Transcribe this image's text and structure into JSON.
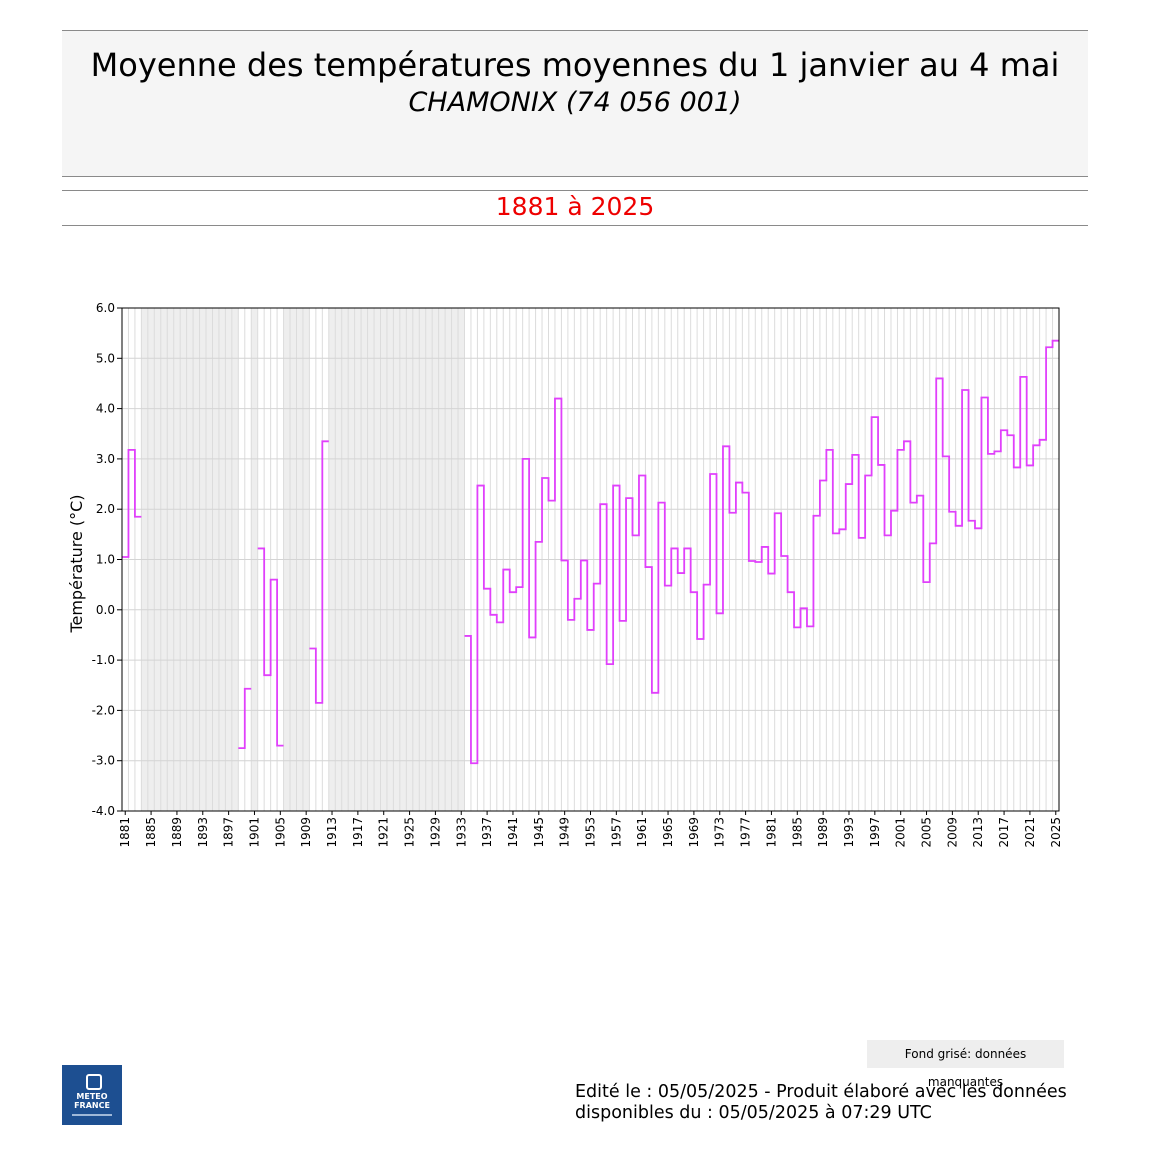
{
  "header": {
    "title": "Moyenne des températures moyennes du 1 janvier au 4 mai",
    "subtitle": "CHAMONIX (74 056 001)",
    "period": "1881 à 2025"
  },
  "footer": {
    "legend_note": "Fond grisé: données manquantes",
    "edited_line1": "Edité le : 05/05/2025 - Produit élaboré avec les données",
    "edited_line2": "disponibles du : 05/05/2025 à 07:29 UTC",
    "logo_text_1": "METEO",
    "logo_text_2": "FRANCE"
  },
  "chart_data": {
    "type": "line",
    "step": true,
    "ylabel": "Température (°C)",
    "xlabel": "",
    "ylim": [
      -4.0,
      6.0
    ],
    "xlim": [
      1881,
      2025
    ],
    "y_ticks": [
      "6.0",
      "5.0",
      "4.0",
      "3.0",
      "2.0",
      "1.0",
      "0.0",
      "-1.0",
      "-2.0",
      "-3.0",
      "-4.0"
    ],
    "x_ticks": [
      "1881",
      "1885",
      "1889",
      "1893",
      "1897",
      "1901",
      "1905",
      "1909",
      "1913",
      "1917",
      "1921",
      "1925",
      "1929",
      "1933",
      "1937",
      "1941",
      "1945",
      "1949",
      "1953",
      "1957",
      "1961",
      "1965",
      "1969",
      "1973",
      "1977",
      "1981",
      "1985",
      "1989",
      "1993",
      "1997",
      "2001",
      "2005",
      "2009",
      "2013",
      "2017",
      "2021",
      "2025"
    ],
    "grid": true,
    "line_color": "#e040fb",
    "missing_color": "#eeeeee",
    "missing_ranges": [
      [
        1884,
        1898
      ],
      [
        1901,
        1901
      ],
      [
        1906,
        1909
      ],
      [
        1913,
        1933
      ]
    ],
    "series": [
      {
        "segments": [
          [
            [
              1881,
              1.05
            ],
            [
              1882,
              3.18
            ],
            [
              1883,
              1.85
            ]
          ],
          [
            [
              1899,
              -2.75
            ],
            [
              1900,
              -1.57
            ]
          ],
          [
            [
              1902,
              1.22
            ],
            [
              1903,
              -1.3
            ],
            [
              1904,
              0.6
            ],
            [
              1905,
              -2.7
            ]
          ],
          [
            [
              1910,
              -0.77
            ],
            [
              1911,
              -1.85
            ],
            [
              1912,
              3.35
            ]
          ],
          [
            [
              1934,
              -0.52
            ],
            [
              1935,
              -3.05
            ],
            [
              1936,
              2.47
            ],
            [
              1937,
              0.42
            ],
            [
              1938,
              -0.1
            ],
            [
              1939,
              -0.25
            ],
            [
              1940,
              0.8
            ],
            [
              1941,
              0.35
            ],
            [
              1942,
              0.45
            ],
            [
              1943,
              3.0
            ],
            [
              1944,
              -0.55
            ],
            [
              1945,
              1.35
            ],
            [
              1946,
              2.62
            ],
            [
              1947,
              2.17
            ],
            [
              1948,
              4.2
            ],
            [
              1949,
              0.98
            ],
            [
              1950,
              -0.2
            ],
            [
              1951,
              0.22
            ],
            [
              1952,
              0.98
            ],
            [
              1953,
              -0.4
            ],
            [
              1954,
              0.52
            ],
            [
              1955,
              2.1
            ],
            [
              1956,
              -1.08
            ],
            [
              1957,
              2.47
            ],
            [
              1958,
              -0.22
            ],
            [
              1959,
              2.22
            ],
            [
              1960,
              1.48
            ],
            [
              1961,
              2.67
            ],
            [
              1962,
              0.85
            ],
            [
              1963,
              -1.65
            ],
            [
              1964,
              2.13
            ],
            [
              1965,
              0.48
            ],
            [
              1966,
              1.22
            ],
            [
              1967,
              0.73
            ],
            [
              1968,
              1.22
            ],
            [
              1969,
              0.35
            ],
            [
              1970,
              -0.58
            ],
            [
              1971,
              0.5
            ],
            [
              1972,
              2.7
            ],
            [
              1973,
              -0.07
            ],
            [
              1974,
              3.25
            ],
            [
              1975,
              1.93
            ],
            [
              1976,
              2.53
            ],
            [
              1977,
              2.33
            ],
            [
              1978,
              0.97
            ],
            [
              1979,
              0.95
            ],
            [
              1980,
              1.25
            ],
            [
              1981,
              0.72
            ],
            [
              1982,
              1.92
            ],
            [
              1983,
              1.07
            ],
            [
              1984,
              0.35
            ],
            [
              1985,
              -0.35
            ],
            [
              1986,
              0.03
            ],
            [
              1987,
              -0.33
            ],
            [
              1988,
              1.87
            ],
            [
              1989,
              2.57
            ],
            [
              1990,
              3.18
            ],
            [
              1991,
              1.52
            ],
            [
              1992,
              1.6
            ],
            [
              1993,
              2.5
            ],
            [
              1994,
              3.08
            ],
            [
              1995,
              1.43
            ],
            [
              1996,
              2.67
            ],
            [
              1997,
              3.83
            ],
            [
              1998,
              2.88
            ],
            [
              1999,
              1.48
            ],
            [
              2000,
              1.97
            ],
            [
              2001,
              3.18
            ],
            [
              2002,
              3.35
            ],
            [
              2003,
              2.13
            ],
            [
              2004,
              2.27
            ],
            [
              2005,
              0.55
            ],
            [
              2006,
              1.32
            ],
            [
              2007,
              4.6
            ],
            [
              2008,
              3.05
            ],
            [
              2009,
              1.95
            ],
            [
              2010,
              1.67
            ],
            [
              2011,
              4.37
            ],
            [
              2012,
              1.77
            ],
            [
              2013,
              1.62
            ],
            [
              2014,
              4.22
            ],
            [
              2015,
              3.1
            ],
            [
              2016,
              3.15
            ],
            [
              2017,
              3.57
            ],
            [
              2018,
              3.47
            ],
            [
              2019,
              2.83
            ],
            [
              2020,
              4.63
            ],
            [
              2021,
              2.87
            ],
            [
              2022,
              3.27
            ],
            [
              2023,
              3.38
            ],
            [
              2024,
              5.22
            ],
            [
              2025,
              5.35
            ]
          ]
        ]
      }
    ]
  }
}
